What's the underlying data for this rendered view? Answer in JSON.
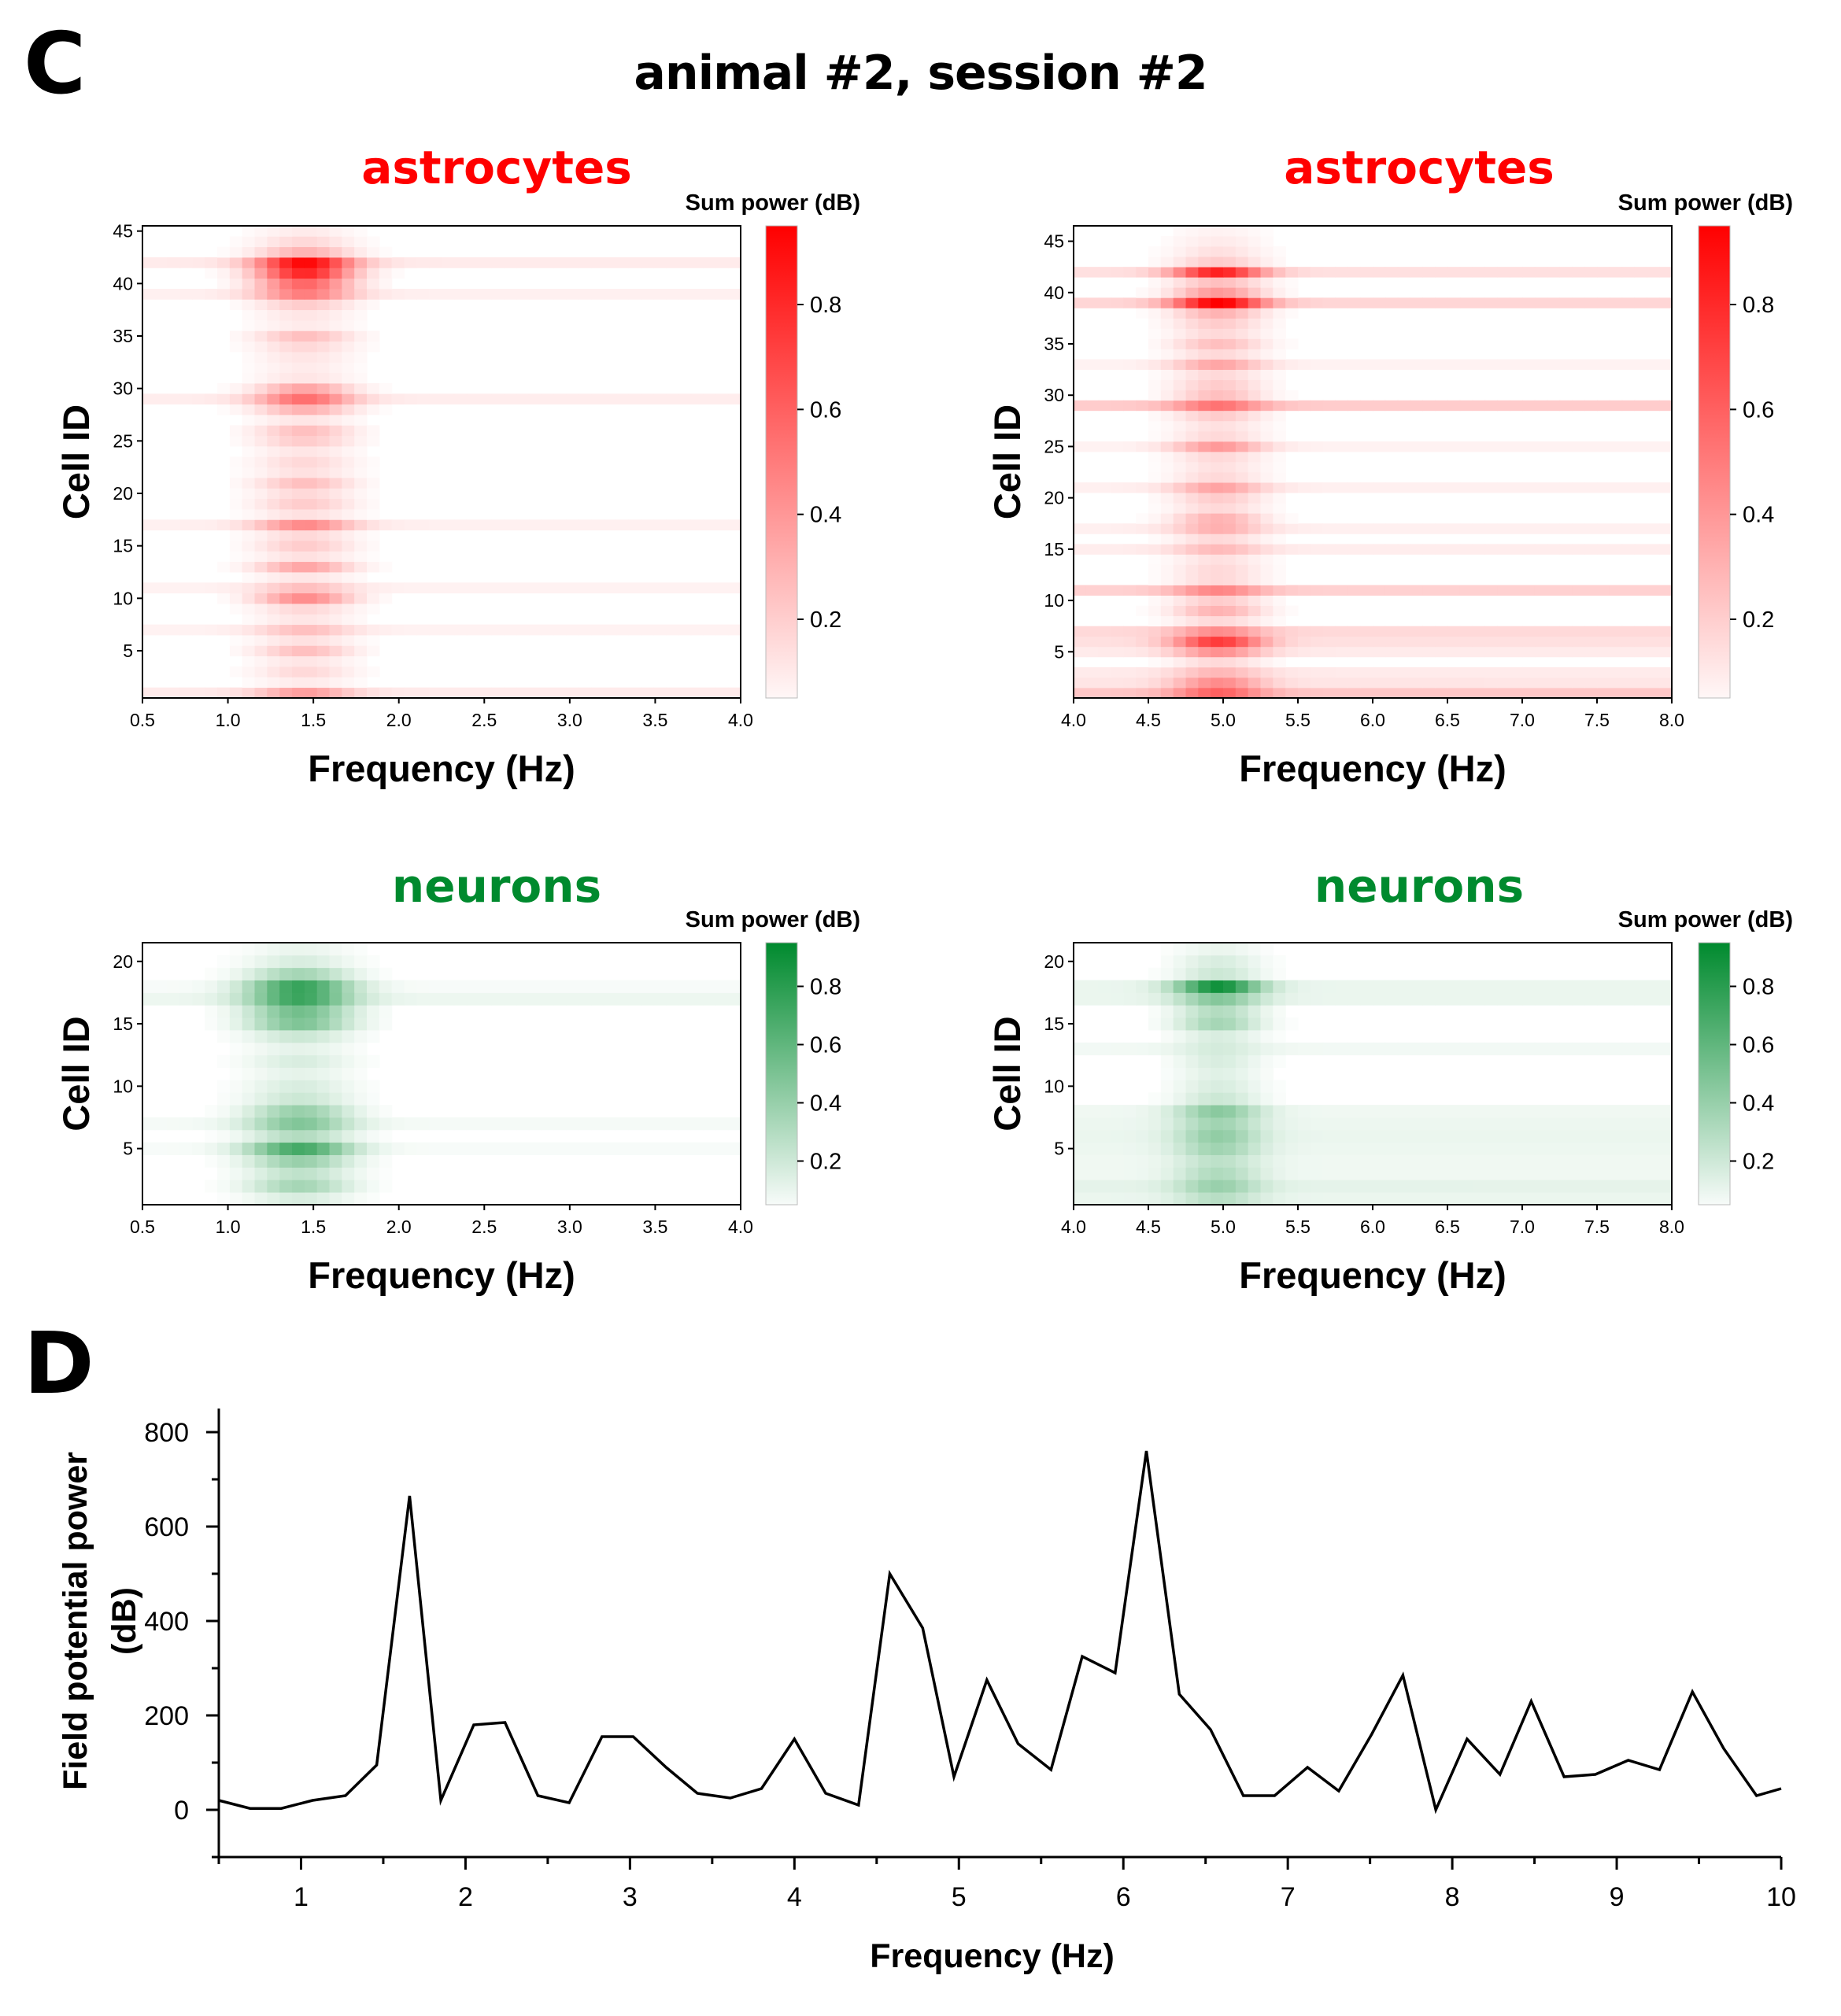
{
  "panel_letters": {
    "c": "C",
    "d": "D"
  },
  "figure_title": "animal #2, session #2",
  "colors": {
    "astro": "#ff0000",
    "neuron": "#008a2e",
    "line": "#000000"
  },
  "chart_data": [
    {
      "type": "heatmap",
      "id": "astro-low",
      "title": "astrocytes",
      "title_color": "#ff0000",
      "colorbar_title": "Sum power (dB)",
      "colorbar_ticks": [
        "0.2",
        "0.4",
        "0.6",
        "0.8"
      ],
      "colorbar_range": [
        0.05,
        0.95
      ],
      "xlabel": "Frequency (Hz)",
      "ylabel": "Cell ID",
      "xlim": [
        0.5,
        4.0
      ],
      "x_ticks": [
        "0.5",
        "1.0",
        "1.5",
        "2.0",
        "2.5",
        "3.0",
        "3.5",
        "4.0"
      ],
      "ylim": [
        0.5,
        45.5
      ],
      "y_ticks": [
        "5",
        "10",
        "15",
        "20",
        "25",
        "30",
        "35",
        "40",
        "45"
      ],
      "n_cells": 45,
      "peak_hz": 1.45,
      "peak_width": 0.28,
      "cell_peak": {
        "1": 0.3,
        "2": 0.08,
        "3": 0.15,
        "4": 0.1,
        "5": 0.25,
        "6": 0.12,
        "7": 0.2,
        "8": 0.1,
        "9": 0.15,
        "10": 0.45,
        "11": 0.2,
        "12": 0.1,
        "13": 0.35,
        "14": 0.12,
        "15": 0.2,
        "16": 0.15,
        "17": 0.4,
        "18": 0.12,
        "19": 0.2,
        "20": 0.15,
        "21": 0.25,
        "22": 0.12,
        "23": 0.15,
        "24": 0.1,
        "25": 0.2,
        "26": 0.25,
        "27": 0.1,
        "28": 0.3,
        "29": 0.5,
        "30": 0.35,
        "31": 0.1,
        "32": 0.08,
        "33": 0.1,
        "34": 0.15,
        "35": 0.25,
        "36": 0.08,
        "37": 0.1,
        "38": 0.2,
        "39": 0.45,
        "40": 0.6,
        "41": 0.85,
        "42": 0.9,
        "43": 0.3,
        "44": 0.15,
        "45": 0.08
      },
      "cell_base": {
        "1": 0.08,
        "7": 0.05,
        "11": 0.05,
        "17": 0.06,
        "29": 0.07,
        "39": 0.06,
        "42": 0.08
      }
    },
    {
      "type": "heatmap",
      "id": "astro-high",
      "title": "astrocytes",
      "title_color": "#ff0000",
      "colorbar_title": "Sum power (dB)",
      "colorbar_ticks": [
        "0.2",
        "0.4",
        "0.6",
        "0.8"
      ],
      "colorbar_range": [
        0.05,
        0.95
      ],
      "xlabel": "Frequency (Hz)",
      "ylabel": "Cell ID",
      "xlim": [
        4.0,
        8.0
      ],
      "x_ticks": [
        "4.0",
        "4.5",
        "5.0",
        "5.5",
        "6.0",
        "6.5",
        "7.0",
        "7.5",
        "8.0"
      ],
      "ylim": [
        0.5,
        46.5
      ],
      "y_ticks": [
        "5",
        "10",
        "15",
        "20",
        "25",
        "30",
        "35",
        "40",
        "45"
      ],
      "n_cells": 46,
      "peak_hz": 4.97,
      "peak_width": 0.3,
      "cell_peak": {
        "1": 0.4,
        "2": 0.35,
        "3": 0.2,
        "4": 0.15,
        "5": 0.35,
        "6": 0.65,
        "7": 0.3,
        "8": 0.15,
        "9": 0.3,
        "10": 0.2,
        "11": 0.3,
        "12": 0.15,
        "13": 0.15,
        "14": 0.12,
        "15": 0.2,
        "16": 0.15,
        "17": 0.25,
        "18": 0.3,
        "19": 0.15,
        "20": 0.2,
        "21": 0.3,
        "22": 0.15,
        "23": 0.12,
        "24": 0.15,
        "25": 0.35,
        "26": 0.15,
        "27": 0.12,
        "28": 0.2,
        "29": 0.35,
        "30": 0.25,
        "31": 0.2,
        "32": 0.15,
        "33": 0.3,
        "34": 0.15,
        "35": 0.25,
        "36": 0.15,
        "37": 0.2,
        "38": 0.3,
        "39": 0.85,
        "40": 0.4,
        "41": 0.25,
        "42": 0.75,
        "43": 0.2,
        "44": 0.12,
        "45": 0.08,
        "46": 0.05
      },
      "cell_base": {
        "1": 0.22,
        "2": 0.1,
        "3": 0.08,
        "5": 0.08,
        "6": 0.12,
        "7": 0.15,
        "11": 0.18,
        "15": 0.07,
        "17": 0.06,
        "21": 0.06,
        "25": 0.05,
        "29": 0.2,
        "33": 0.05,
        "39": 0.16,
        "42": 0.12
      }
    },
    {
      "type": "heatmap",
      "id": "neuron-low",
      "title": "neurons",
      "title_color": "#008a2e",
      "colorbar_title": "Sum power (dB)",
      "colorbar_ticks": [
        "0.2",
        "0.4",
        "0.6",
        "0.8"
      ],
      "colorbar_range": [
        0.05,
        0.95
      ],
      "xlabel": "Frequency (Hz)",
      "ylabel": "Cell ID",
      "xlim": [
        0.5,
        4.0
      ],
      "x_ticks": [
        "0.5",
        "1.0",
        "1.5",
        "2.0",
        "2.5",
        "3.0",
        "3.5",
        "4.0"
      ],
      "ylim": [
        0.5,
        21.5
      ],
      "y_ticks": [
        "5",
        "10",
        "15",
        "20"
      ],
      "n_cells": 21,
      "peak_hz": 1.42,
      "peak_width": 0.3,
      "cell_peak": {
        "1": 0.15,
        "2": 0.35,
        "3": 0.25,
        "4": 0.4,
        "5": 0.7,
        "6": 0.3,
        "7": 0.45,
        "8": 0.4,
        "9": 0.2,
        "10": 0.15,
        "11": 0.1,
        "12": 0.15,
        "13": 0.1,
        "14": 0.2,
        "15": 0.5,
        "16": 0.55,
        "17": 0.7,
        "18": 0.75,
        "19": 0.35,
        "20": 0.15,
        "21": 0.08
      },
      "cell_base": {
        "5": 0.03,
        "7": 0.04,
        "17": 0.07,
        "18": 0.03
      }
    },
    {
      "type": "heatmap",
      "id": "neuron-high",
      "title": "neurons",
      "title_color": "#008a2e",
      "colorbar_title": "Sum power (dB)",
      "colorbar_ticks": [
        "0.2",
        "0.4",
        "0.6",
        "0.8"
      ],
      "colorbar_range": [
        0.05,
        0.95
      ],
      "xlabel": "Frequency (Hz)",
      "ylabel": "Cell ID",
      "xlim": [
        4.0,
        8.0
      ],
      "x_ticks": [
        "4.0",
        "4.5",
        "5.0",
        "5.5",
        "6.0",
        "6.5",
        "7.0",
        "7.5",
        "8.0"
      ],
      "ylim": [
        0.5,
        21.5
      ],
      "y_ticks": [
        "5",
        "10",
        "15",
        "20"
      ],
      "n_cells": 21,
      "peak_hz": 4.97,
      "peak_width": 0.28,
      "cell_peak": {
        "1": 0.2,
        "2": 0.3,
        "3": 0.25,
        "4": 0.2,
        "5": 0.3,
        "6": 0.35,
        "7": 0.3,
        "8": 0.4,
        "9": 0.2,
        "10": 0.15,
        "11": 0.12,
        "12": 0.15,
        "13": 0.12,
        "14": 0.15,
        "15": 0.35,
        "16": 0.3,
        "17": 0.4,
        "18": 0.85,
        "19": 0.2,
        "20": 0.15,
        "21": 0.08
      },
      "cell_base": {
        "1": 0.08,
        "2": 0.1,
        "3": 0.06,
        "4": 0.06,
        "5": 0.07,
        "6": 0.08,
        "7": 0.07,
        "8": 0.06,
        "13": 0.05,
        "17": 0.08,
        "18": 0.08
      }
    },
    {
      "type": "line",
      "id": "field-potential",
      "title": "",
      "xlabel": "Frequency (Hz)",
      "ylabel_lines": [
        "Field potential power",
        "(dB)"
      ],
      "xlim": [
        0.5,
        10.0
      ],
      "ylim": [
        -100,
        850
      ],
      "x_ticks": [
        "1",
        "2",
        "3",
        "4",
        "5",
        "6",
        "7",
        "8",
        "9",
        "10"
      ],
      "y_ticks": [
        "0",
        "200",
        "400",
        "600",
        "800"
      ],
      "x": [
        0.5,
        0.69,
        0.88,
        1.07,
        1.27,
        1.46,
        1.66,
        1.85,
        2.05,
        2.24,
        2.44,
        2.63,
        2.83,
        3.02,
        3.22,
        3.41,
        3.61,
        3.8,
        4.0,
        4.19,
        4.39,
        4.58,
        4.78,
        4.97,
        5.17,
        5.36,
        5.56,
        5.75,
        5.95,
        6.14,
        6.34,
        6.53,
        6.73,
        6.92,
        7.12,
        7.31,
        7.51,
        7.7,
        7.9,
        8.09,
        8.29,
        8.48,
        8.68,
        8.87,
        9.07,
        9.26,
        9.46,
        9.65,
        9.85,
        10.0
      ],
      "y": [
        20,
        3,
        3,
        20,
        30,
        95,
        665,
        20,
        180,
        185,
        30,
        15,
        155,
        155,
        90,
        35,
        25,
        45,
        150,
        35,
        10,
        500,
        385,
        70,
        275,
        140,
        85,
        325,
        290,
        760,
        245,
        170,
        30,
        30,
        90,
        40,
        160,
        285,
        0,
        150,
        75,
        230,
        70,
        75,
        105,
        85,
        250,
        130,
        30,
        45
      ]
    }
  ]
}
